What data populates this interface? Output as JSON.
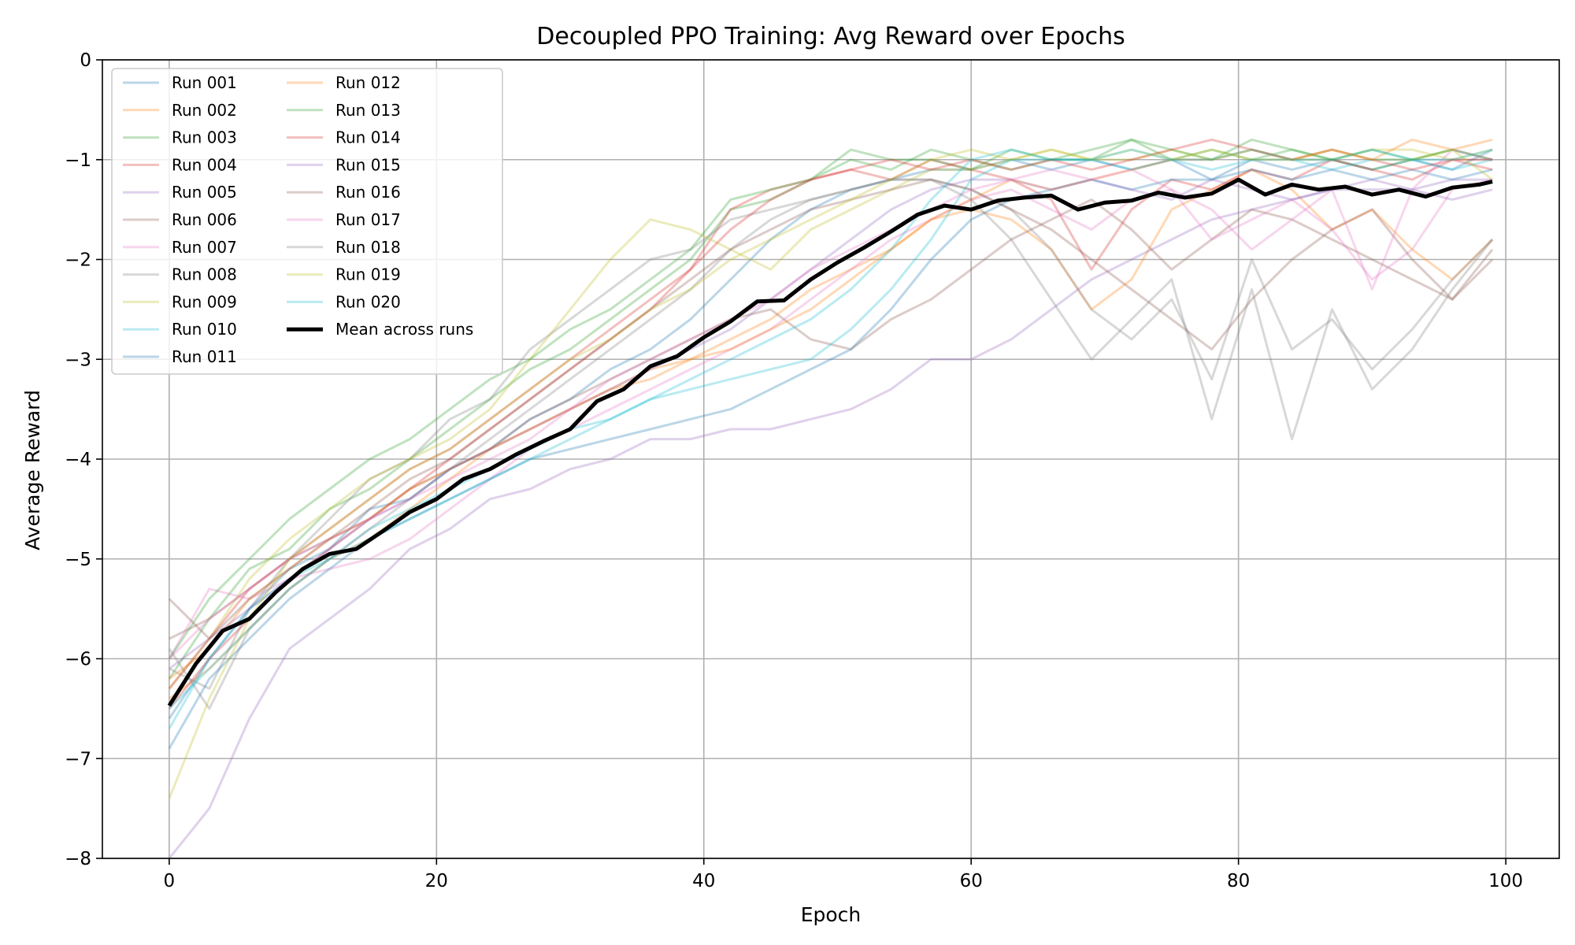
{
  "chart_data": {
    "type": "line",
    "title": "Decoupled PPO Training: Avg Reward over Epochs",
    "xlabel": "Epoch",
    "ylabel": "Average Reward",
    "xlim": [
      -5,
      104
    ],
    "ylim": [
      -8,
      0
    ],
    "x_ticks": [
      "0",
      "20",
      "40",
      "60",
      "80",
      "100"
    ],
    "y_ticks": [
      "0",
      "−1",
      "−2",
      "−3",
      "−4",
      "−5",
      "−6",
      "−7",
      "−8"
    ],
    "grid": true,
    "legend_location": "upper-left",
    "legend_columns": 2,
    "x": [
      0,
      3,
      6,
      9,
      12,
      15,
      18,
      21,
      24,
      27,
      30,
      33,
      36,
      39,
      42,
      45,
      48,
      51,
      54,
      57,
      60,
      63,
      66,
      69,
      72,
      75,
      78,
      81,
      84,
      87,
      90,
      93,
      96,
      99
    ],
    "series": [
      {
        "name": "Run 001",
        "color": "#1f77b4",
        "values": [
          -6.6,
          -6.0,
          -5.5,
          -5.1,
          -4.9,
          -4.5,
          -4.4,
          -4.1,
          -3.9,
          -3.6,
          -3.4,
          -3.1,
          -2.9,
          -2.6,
          -2.2,
          -1.8,
          -1.5,
          -1.3,
          -1.2,
          -1.1,
          -1.1,
          -1.0,
          -1.1,
          -1.0,
          -1.1,
          -1.0,
          -1.2,
          -1.0,
          -1.1,
          -1.0,
          -1.1,
          -1.0,
          -1.1,
          -0.9
        ]
      },
      {
        "name": "Run 002",
        "color": "#ff7f0e",
        "values": [
          -6.4,
          -6.1,
          -5.7,
          -5.3,
          -5.0,
          -4.8,
          -4.5,
          -4.2,
          -3.9,
          -3.7,
          -3.5,
          -3.3,
          -3.1,
          -3.0,
          -2.8,
          -2.6,
          -2.3,
          -2.1,
          -1.9,
          -1.6,
          -1.5,
          -1.6,
          -1.9,
          -2.5,
          -2.2,
          -1.5,
          -1.3,
          -1.1,
          -1.3,
          -1.7,
          -1.5,
          -1.9,
          -2.2,
          -1.8
        ]
      },
      {
        "name": "Run 003",
        "color": "#2ca02c",
        "values": [
          -6.2,
          -5.6,
          -5.1,
          -4.9,
          -4.5,
          -4.3,
          -4.0,
          -3.7,
          -3.4,
          -3.1,
          -2.9,
          -2.6,
          -2.3,
          -2.0,
          -1.5,
          -1.4,
          -1.2,
          -1.0,
          -1.1,
          -0.9,
          -1.0,
          -1.1,
          -1.0,
          -1.0,
          -0.8,
          -1.0,
          -0.9,
          -1.0,
          -0.9,
          -1.0,
          -1.1,
          -1.0,
          -0.9,
          -1.0
        ]
      },
      {
        "name": "Run 004",
        "color": "#d62728",
        "values": [
          -6.5,
          -6.0,
          -5.6,
          -5.2,
          -4.9,
          -4.6,
          -4.3,
          -4.0,
          -3.7,
          -3.4,
          -3.1,
          -2.8,
          -2.5,
          -2.1,
          -1.5,
          -1.3,
          -1.2,
          -1.1,
          -1.2,
          -1.0,
          -1.1,
          -1.2,
          -1.4,
          -2.1,
          -1.5,
          -1.2,
          -1.3,
          -1.1,
          -1.2,
          -1.0,
          -1.1,
          -1.2,
          -1.0,
          -1.1
        ]
      },
      {
        "name": "Run 005",
        "color": "#9467bd",
        "values": [
          -8.0,
          -7.5,
          -6.6,
          -5.9,
          -5.6,
          -5.3,
          -4.9,
          -4.7,
          -4.4,
          -4.3,
          -4.1,
          -4.0,
          -3.8,
          -3.8,
          -3.7,
          -3.7,
          -3.6,
          -3.5,
          -3.3,
          -3.0,
          -3.0,
          -2.8,
          -2.5,
          -2.2,
          -2.0,
          -1.8,
          -1.6,
          -1.5,
          -1.4,
          -1.3,
          -1.3,
          -1.3,
          -1.2,
          -1.2
        ]
      },
      {
        "name": "Run 006",
        "color": "#8c564b",
        "values": [
          -5.8,
          -5.6,
          -5.3,
          -5.0,
          -4.8,
          -4.6,
          -4.3,
          -4.1,
          -3.9,
          -3.6,
          -3.4,
          -3.2,
          -3.0,
          -2.8,
          -2.6,
          -2.5,
          -2.8,
          -2.9,
          -2.6,
          -2.4,
          -2.1,
          -1.8,
          -1.6,
          -1.4,
          -1.7,
          -2.1,
          -1.8,
          -1.5,
          -1.6,
          -1.8,
          -2.0,
          -2.2,
          -2.4,
          -1.9
        ]
      },
      {
        "name": "Run 007",
        "color": "#e377c2",
        "values": [
          -6.0,
          -5.3,
          -5.4,
          -5.2,
          -5.1,
          -5.0,
          -4.8,
          -4.5,
          -4.2,
          -3.9,
          -3.7,
          -3.5,
          -3.3,
          -3.1,
          -2.9,
          -2.7,
          -2.4,
          -2.1,
          -1.8,
          -1.6,
          -1.4,
          -1.3,
          -1.5,
          -1.7,
          -1.4,
          -1.3,
          -1.8,
          -1.6,
          -1.4,
          -1.7,
          -2.2,
          -1.9,
          -1.3,
          -1.2
        ]
      },
      {
        "name": "Run 008",
        "color": "#7f7f7f",
        "values": [
          -6.1,
          -6.3,
          -5.5,
          -5.0,
          -4.6,
          -4.2,
          -4.0,
          -3.6,
          -3.4,
          -2.9,
          -2.6,
          -2.3,
          -2.0,
          -1.9,
          -1.6,
          -1.5,
          -1.4,
          -1.3,
          -1.2,
          -1.2,
          -1.3,
          -1.5,
          -1.9,
          -2.5,
          -2.8,
          -2.4,
          -3.2,
          -2.0,
          -2.9,
          -2.6,
          -3.1,
          -2.7,
          -2.2,
          -1.8
        ]
      },
      {
        "name": "Run 009",
        "color": "#bcbd22",
        "values": [
          -6.3,
          -5.8,
          -5.2,
          -4.8,
          -4.5,
          -4.2,
          -4.0,
          -3.8,
          -3.5,
          -3.0,
          -2.5,
          -2.0,
          -1.6,
          -1.7,
          -1.9,
          -2.1,
          -1.7,
          -1.5,
          -1.3,
          -1.1,
          -1.1,
          -1.0,
          -0.9,
          -1.0,
          -1.0,
          -0.9,
          -1.0,
          -0.9,
          -1.0,
          -1.0,
          -0.9,
          -0.9,
          -1.0,
          -0.9
        ]
      },
      {
        "name": "Run 010",
        "color": "#17becf",
        "values": [
          -6.7,
          -6.0,
          -5.5,
          -5.2,
          -5.0,
          -4.7,
          -4.5,
          -4.3,
          -4.1,
          -3.9,
          -3.7,
          -3.6,
          -3.4,
          -3.3,
          -3.2,
          -3.1,
          -3.0,
          -2.7,
          -2.3,
          -1.8,
          -1.2,
          -1.0,
          -1.0,
          -1.0,
          -1.1,
          -1.0,
          -1.1,
          -1.0,
          -1.0,
          -1.1,
          -1.0,
          -1.0,
          -1.1,
          -1.0
        ]
      },
      {
        "name": "Run 011",
        "color": "#1f77b4",
        "values": [
          -6.9,
          -6.2,
          -5.8,
          -5.4,
          -5.1,
          -4.8,
          -4.6,
          -4.4,
          -4.2,
          -4.0,
          -3.9,
          -3.8,
          -3.7,
          -3.6,
          -3.5,
          -3.3,
          -3.1,
          -2.9,
          -2.5,
          -2.0,
          -1.6,
          -1.4,
          -1.3,
          -1.2,
          -1.3,
          -1.2,
          -1.2,
          -1.1,
          -1.2,
          -1.1,
          -1.2,
          -1.1,
          -1.2,
          -1.1
        ]
      },
      {
        "name": "Run 012",
        "color": "#ff7f0e",
        "values": [
          -6.2,
          -5.9,
          -5.4,
          -5.1,
          -4.8,
          -4.6,
          -4.3,
          -4.1,
          -3.9,
          -3.7,
          -3.5,
          -3.3,
          -3.2,
          -3.0,
          -2.9,
          -2.7,
          -2.5,
          -2.2,
          -1.9,
          -1.6,
          -1.4,
          -1.2,
          -1.3,
          -1.2,
          -1.1,
          -1.0,
          -1.0,
          -0.9,
          -1.0,
          -0.9,
          -1.0,
          -0.8,
          -0.9,
          -0.8
        ]
      },
      {
        "name": "Run 013",
        "color": "#2ca02c",
        "values": [
          -6.0,
          -5.4,
          -5.0,
          -4.6,
          -4.3,
          -4.0,
          -3.8,
          -3.5,
          -3.2,
          -3.0,
          -2.7,
          -2.5,
          -2.2,
          -1.9,
          -1.4,
          -1.3,
          -1.2,
          -0.9,
          -1.0,
          -1.0,
          -1.1,
          -0.9,
          -1.0,
          -0.9,
          -0.8,
          -0.9,
          -1.0,
          -0.8,
          -0.9,
          -1.0,
          -0.9,
          -1.0,
          -0.9,
          -1.0
        ]
      },
      {
        "name": "Run 014",
        "color": "#d62728",
        "values": [
          -6.3,
          -5.8,
          -5.3,
          -5.0,
          -4.7,
          -4.4,
          -4.1,
          -3.9,
          -3.6,
          -3.3,
          -3.0,
          -2.7,
          -2.4,
          -2.1,
          -1.7,
          -1.4,
          -1.2,
          -1.1,
          -1.0,
          -1.1,
          -1.0,
          -1.1,
          -1.0,
          -1.1,
          -1.0,
          -0.9,
          -0.8,
          -0.9,
          -1.0,
          -0.9,
          -1.0,
          -1.1,
          -1.0,
          -1.0
        ]
      },
      {
        "name": "Run 015",
        "color": "#9467bd",
        "values": [
          -6.1,
          -5.8,
          -5.5,
          -5.2,
          -4.9,
          -4.6,
          -4.4,
          -4.1,
          -3.9,
          -3.7,
          -3.5,
          -3.3,
          -3.1,
          -2.9,
          -2.7,
          -2.4,
          -2.1,
          -1.8,
          -1.5,
          -1.3,
          -1.2,
          -1.2,
          -1.3,
          -1.2,
          -1.3,
          -1.4,
          -1.2,
          -1.3,
          -1.4,
          -1.3,
          -1.2,
          -1.3,
          -1.4,
          -1.3
        ]
      },
      {
        "name": "Run 016",
        "color": "#8c564b",
        "values": [
          -5.4,
          -5.8,
          -5.4,
          -5.1,
          -4.8,
          -4.5,
          -4.2,
          -4.0,
          -3.7,
          -3.4,
          -3.1,
          -2.8,
          -2.5,
          -2.2,
          -1.9,
          -1.7,
          -1.5,
          -1.4,
          -1.3,
          -1.2,
          -1.3,
          -1.5,
          -1.7,
          -2.0,
          -2.3,
          -2.6,
          -2.9,
          -2.4,
          -2.0,
          -1.7,
          -1.5,
          -2.0,
          -2.4,
          -2.0
        ]
      },
      {
        "name": "Run 017",
        "color": "#e377c2",
        "values": [
          -6.0,
          -5.6,
          -5.3,
          -5.0,
          -4.8,
          -4.6,
          -4.4,
          -4.2,
          -4.0,
          -3.8,
          -3.5,
          -3.2,
          -3.0,
          -2.8,
          -2.6,
          -2.4,
          -2.1,
          -1.9,
          -1.7,
          -1.5,
          -1.3,
          -1.2,
          -1.1,
          -1.2,
          -1.1,
          -1.3,
          -1.5,
          -1.9,
          -1.6,
          -1.3,
          -2.3,
          -1.3,
          -0.9,
          -1.0
        ]
      },
      {
        "name": "Run 018",
        "color": "#7f7f7f",
        "values": [
          -5.9,
          -6.5,
          -5.7,
          -5.3,
          -5.0,
          -4.7,
          -4.4,
          -4.1,
          -3.8,
          -3.5,
          -3.2,
          -2.9,
          -2.6,
          -2.3,
          -1.9,
          -1.6,
          -1.4,
          -1.3,
          -1.2,
          -1.2,
          -1.4,
          -1.8,
          -2.4,
          -3.0,
          -2.6,
          -2.2,
          -3.6,
          -2.3,
          -3.8,
          -2.5,
          -3.3,
          -2.9,
          -2.3,
          -1.8
        ]
      },
      {
        "name": "Run 019",
        "color": "#bcbd22",
        "values": [
          -7.4,
          -6.4,
          -5.6,
          -5.0,
          -4.7,
          -4.4,
          -4.1,
          -3.9,
          -3.6,
          -3.3,
          -3.0,
          -2.8,
          -2.5,
          -2.3,
          -2.0,
          -1.8,
          -1.6,
          -1.4,
          -1.2,
          -1.0,
          -0.9,
          -1.0,
          -0.9,
          -1.0,
          -0.9,
          -1.0,
          -0.9,
          -1.0,
          -1.0,
          -0.9,
          -1.0,
          -1.0,
          -0.9,
          -1.2
        ]
      },
      {
        "name": "Run 020",
        "color": "#17becf",
        "values": [
          -6.5,
          -6.1,
          -5.7,
          -5.3,
          -5.0,
          -4.8,
          -4.6,
          -4.4,
          -4.2,
          -4.0,
          -3.8,
          -3.6,
          -3.4,
          -3.2,
          -3.0,
          -2.8,
          -2.6,
          -2.3,
          -1.9,
          -1.4,
          -1.0,
          -0.9,
          -1.0,
          -1.0,
          -0.9,
          -1.0,
          -1.0,
          -0.9,
          -1.0,
          -1.0,
          -0.9,
          -1.0,
          -1.0,
          -0.9
        ]
      }
    ],
    "mean_series": {
      "name": "Mean across runs",
      "color": "#000000",
      "x": [
        0,
        2,
        4,
        6,
        8,
        10,
        12,
        14,
        16,
        18,
        20,
        22,
        24,
        26,
        28,
        30,
        32,
        34,
        36,
        38,
        40,
        42,
        44,
        46,
        48,
        50,
        52,
        54,
        56,
        58,
        60,
        62,
        64,
        66,
        68,
        70,
        72,
        74,
        76,
        78,
        80,
        82,
        84,
        86,
        88,
        90,
        92,
        94,
        96,
        98,
        99
      ],
      "values": [
        -6.47,
        -6.05,
        -5.72,
        -5.6,
        -5.33,
        -5.1,
        -4.95,
        -4.9,
        -4.72,
        -4.53,
        -4.4,
        -4.2,
        -4.1,
        -3.95,
        -3.82,
        -3.7,
        -3.42,
        -3.3,
        -3.07,
        -2.97,
        -2.78,
        -2.62,
        -2.42,
        -2.41,
        -2.2,
        -2.03,
        -1.88,
        -1.72,
        -1.55,
        -1.46,
        -1.5,
        -1.41,
        -1.38,
        -1.36,
        -1.5,
        -1.43,
        -1.41,
        -1.33,
        -1.38,
        -1.34,
        -1.2,
        -1.35,
        -1.25,
        -1.3,
        -1.27,
        -1.35,
        -1.3,
        -1.37,
        -1.28,
        -1.25,
        -1.22
      ]
    }
  }
}
